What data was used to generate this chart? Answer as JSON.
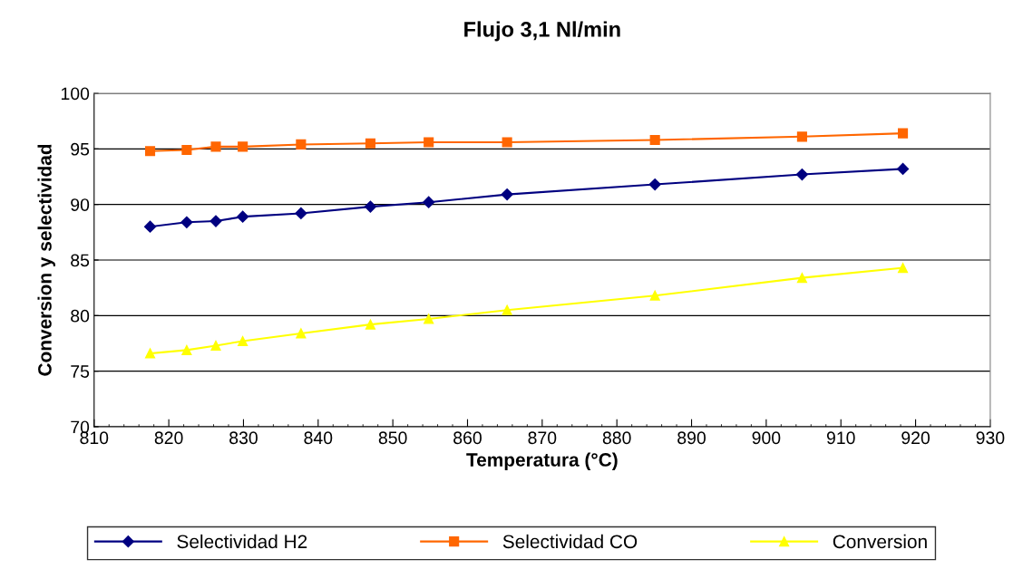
{
  "chart_data": {
    "type": "line",
    "title": "Flujo 3,1 Nl/min",
    "xlabel": "Temperatura (°C)",
    "ylabel": "Conversion y selectividad",
    "x": [
      817.5,
      822.4,
      826.3,
      829.9,
      837.7,
      847.0,
      854.8,
      865.3,
      885.1,
      904.8,
      918.3
    ],
    "series": [
      {
        "name": "Selectividad H2",
        "color": "#000080",
        "marker": "diamond",
        "values": [
          88.0,
          88.4,
          88.5,
          88.9,
          89.2,
          89.8,
          90.2,
          90.9,
          91.8,
          92.7,
          93.2
        ]
      },
      {
        "name": "Selectividad CO",
        "color": "#ff6600",
        "marker": "square",
        "values": [
          94.8,
          94.9,
          95.2,
          95.2,
          95.4,
          95.5,
          95.6,
          95.6,
          95.8,
          96.1,
          96.4
        ]
      },
      {
        "name": "Conversion",
        "color": "#ffff00",
        "marker": "triangle",
        "values": [
          76.6,
          76.9,
          77.3,
          77.7,
          78.4,
          79.2,
          79.7,
          80.5,
          81.8,
          83.4,
          84.3
        ]
      }
    ],
    "xlim": [
      810,
      930
    ],
    "xticks": [
      810,
      820,
      830,
      840,
      850,
      860,
      870,
      880,
      890,
      900,
      910,
      920,
      930
    ],
    "ylim": [
      70,
      100
    ],
    "yticks": [
      70,
      75,
      80,
      85,
      90,
      95,
      100
    ],
    "grid": "y",
    "legend": "bottom",
    "line_style": "solid"
  }
}
